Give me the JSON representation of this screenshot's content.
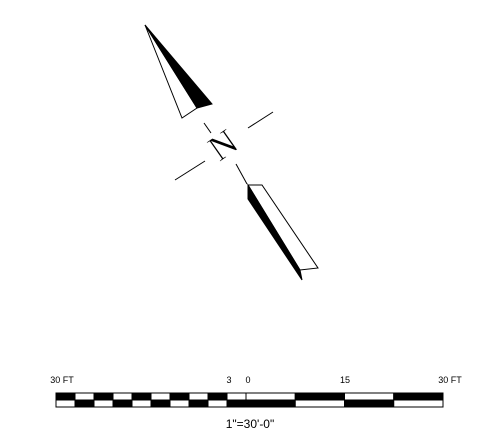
{
  "north_label": "N",
  "scale": {
    "labels": [
      "30 FT",
      "3",
      "0",
      "15",
      "30 FT"
    ],
    "caption": "1\"=30'-0\""
  }
}
